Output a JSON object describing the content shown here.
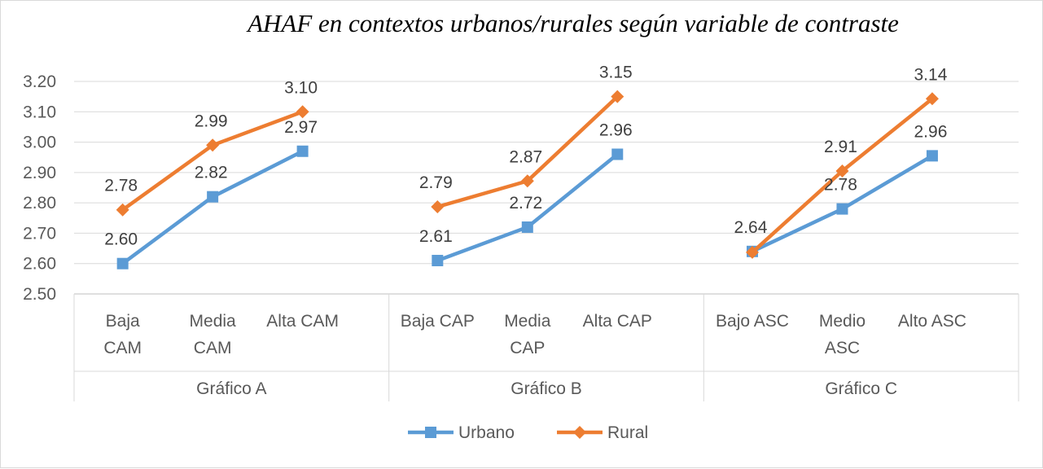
{
  "chart_data": {
    "type": "line",
    "title": "AHAF  en contextos urbanos/rurales según variable de contraste",
    "ylim": [
      2.5,
      3.2
    ],
    "yticks": [
      "3.20",
      "3.10",
      "3.00",
      "2.90",
      "2.80",
      "2.70",
      "2.60",
      "2.50"
    ],
    "grid": true,
    "legend_position": "bottom",
    "groups": [
      {
        "name": "Gráfico A",
        "categories": [
          [
            "Baja",
            "CAM"
          ],
          [
            "Media",
            "CAM"
          ],
          [
            "Alta CAM"
          ]
        ]
      },
      {
        "name": "Gráfico B",
        "categories": [
          [
            "Baja CAP"
          ],
          [
            "Media",
            "CAP"
          ],
          [
            "Alta CAP"
          ]
        ]
      },
      {
        "name": "Gráfico C",
        "categories": [
          [
            "Bajo ASC"
          ],
          [
            "Medio",
            "ASC"
          ],
          [
            "Alto ASC"
          ]
        ]
      }
    ],
    "series": [
      {
        "name": "Urbano",
        "color": "#5b9bd5",
        "marker": "square",
        "values": [
          [
            2.6,
            2.82,
            2.97
          ],
          [
            2.61,
            2.72,
            2.96
          ],
          [
            2.64,
            2.78,
            2.955
          ]
        ],
        "labels": [
          [
            "2.60",
            "2.82",
            "2.97"
          ],
          [
            "2.61",
            "2.72",
            "2.96"
          ],
          [
            "2.64",
            "2.78",
            "2.96"
          ]
        ]
      },
      {
        "name": "Rural",
        "color": "#ed7d31",
        "marker": "diamond",
        "values": [
          [
            2.777,
            2.99,
            3.1
          ],
          [
            2.787,
            2.872,
            3.15
          ],
          [
            2.637,
            2.905,
            3.143
          ]
        ],
        "labels": [
          [
            "2.78",
            "2.99",
            "3.10"
          ],
          [
            "2.79",
            "2.87",
            "3.15"
          ],
          [
            "",
            "2.91",
            "3.14"
          ]
        ]
      }
    ]
  }
}
